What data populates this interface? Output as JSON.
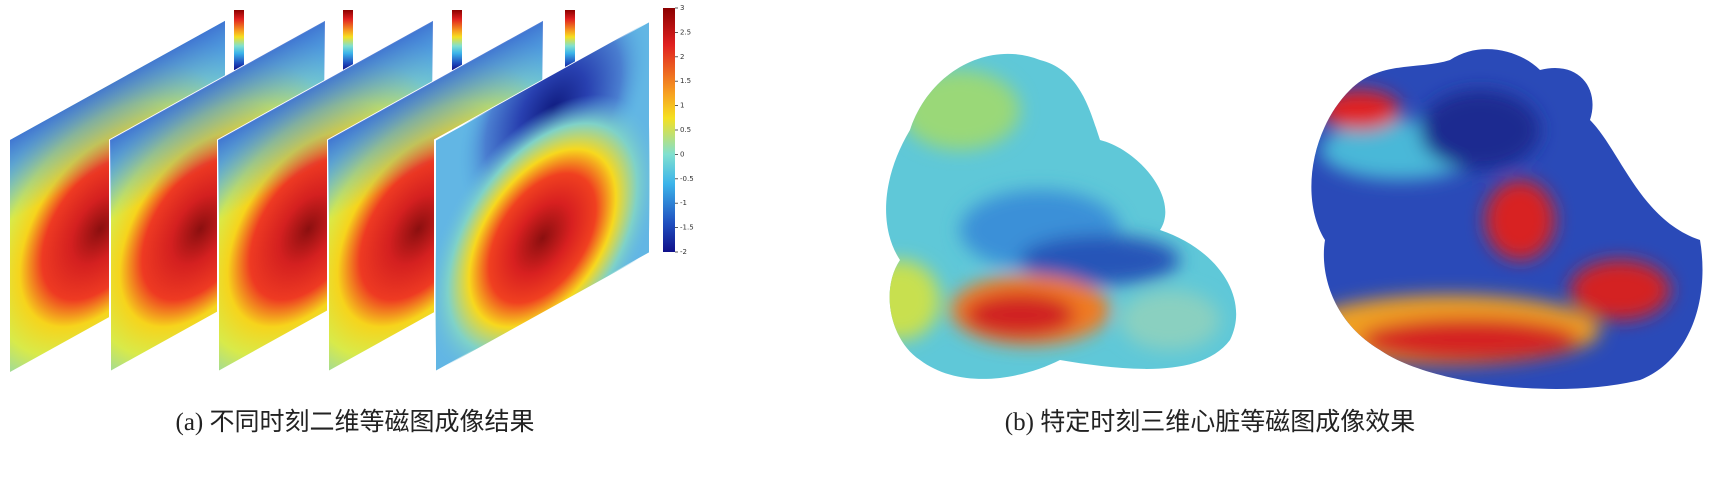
{
  "panel_a": {
    "caption": "(a) 不同时刻二维等磁图成像结果",
    "colorbar": {
      "lim": [
        -2,
        3
      ],
      "ticks": [
        3,
        2.5,
        2,
        1.5,
        1,
        0.5,
        0,
        -0.5,
        -1,
        -1.5,
        -2
      ]
    }
  },
  "panel_b": {
    "caption": "(b) 特定时刻三维心脏等磁图成像效果"
  }
}
